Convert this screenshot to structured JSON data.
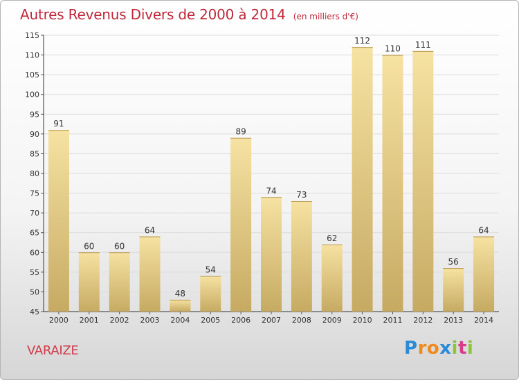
{
  "chart_data": {
    "type": "bar",
    "title": "Autres Revenus Divers de 2000 à 2014",
    "subtitle": "(en milliers d'€)",
    "categories": [
      "2000",
      "2001",
      "2002",
      "2003",
      "2004",
      "2005",
      "2006",
      "2007",
      "2008",
      "2009",
      "2010",
      "2011",
      "2012",
      "2013",
      "2014"
    ],
    "values": [
      91,
      60,
      60,
      64,
      48,
      54,
      89,
      74,
      73,
      62,
      112,
      110,
      111,
      56,
      64
    ],
    "ylim": [
      45,
      115
    ],
    "yticks": [
      45,
      50,
      55,
      60,
      65,
      70,
      75,
      80,
      85,
      90,
      95,
      100,
      105,
      110,
      115
    ],
    "grid": true,
    "colors": {
      "bar_light": "#f6e2a2",
      "bar_dark": "#c6aa62",
      "title": "#c0283a",
      "grid": "#dcdcdc"
    }
  },
  "footer": {
    "place": "VARAIZE",
    "logo": [
      "P",
      "r",
      "o",
      "x",
      "i",
      "t",
      "i"
    ],
    "logo_colors": [
      "#2a8ad6",
      "#f08a1c",
      "#f08a1c",
      "#2a8ad6",
      "#8cc43c",
      "#d93a8a",
      "#8cc43c"
    ]
  }
}
